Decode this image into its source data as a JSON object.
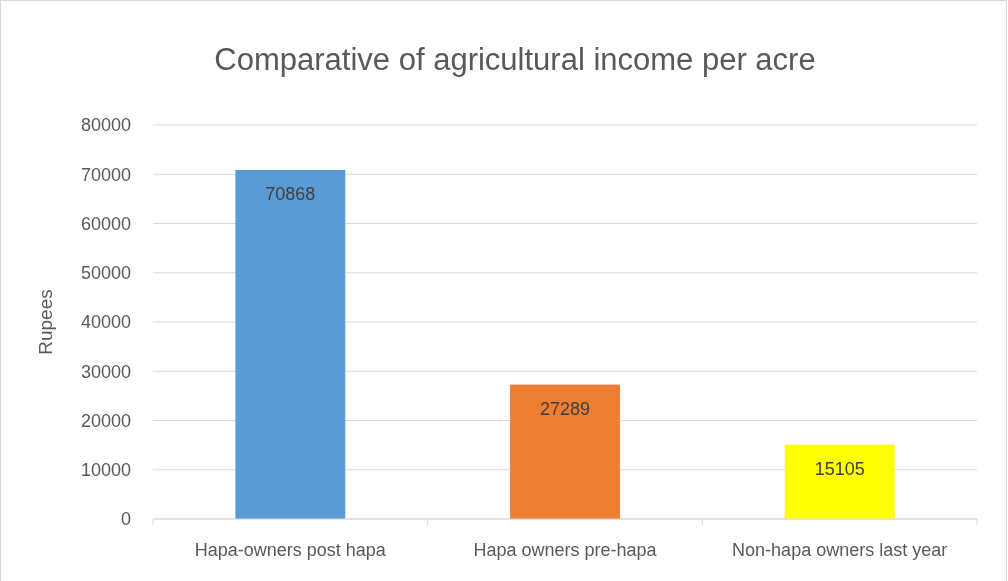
{
  "chart_data": {
    "type": "bar",
    "title": "Comparative of agricultural income per acre",
    "ylabel": "Rupees",
    "categories": [
      "Hapa-owners post hapa",
      "Hapa owners pre-hapa",
      "Non-hapa owners last year"
    ],
    "values": [
      70868,
      27289,
      15105
    ],
    "colors": [
      "#5b9bd5",
      "#ed7d31",
      "#ffff00"
    ],
    "ylim": [
      0,
      80000
    ],
    "yticks": [
      0,
      10000,
      20000,
      30000,
      40000,
      50000,
      60000,
      70000,
      80000
    ],
    "grid": "y",
    "data_labels": true
  }
}
